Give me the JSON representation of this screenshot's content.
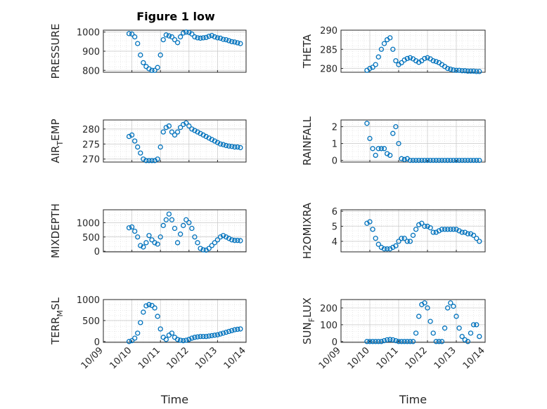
{
  "figure": {
    "title": "Figure 1 low",
    "marker_color": "#0072BD"
  },
  "chart_data": [
    {
      "type": "scatter",
      "panel": "pressure",
      "ylabel": "PRESSURE",
      "xlabel": "",
      "ylim": [
        790,
        1010
      ],
      "yticks": [
        800,
        900,
        1000
      ],
      "xlim": [
        0,
        5
      ],
      "xticks": [],
      "x": [
        0.9,
        1.0,
        1.1,
        1.2,
        1.3,
        1.4,
        1.5,
        1.6,
        1.7,
        1.8,
        1.9,
        2.0,
        2.1,
        2.2,
        2.3,
        2.4,
        2.5,
        2.6,
        2.7,
        2.8,
        2.9,
        3.0,
        3.1,
        3.2,
        3.3,
        3.4,
        3.5,
        3.6,
        3.7,
        3.8,
        3.9,
        4.0,
        4.1,
        4.2,
        4.3,
        4.4,
        4.5,
        4.6,
        4.7,
        4.8
      ],
      "y": [
        992,
        990,
        975,
        940,
        880,
        840,
        820,
        808,
        800,
        800,
        815,
        880,
        960,
        985,
        980,
        975,
        960,
        945,
        975,
        995,
        1000,
        998,
        990,
        975,
        970,
        968,
        970,
        972,
        978,
        982,
        975,
        970,
        968,
        962,
        960,
        955,
        950,
        948,
        944,
        940
      ]
    },
    {
      "type": "scatter",
      "panel": "theta",
      "ylabel": "THETA",
      "xlabel": "",
      "ylim": [
        279,
        290
      ],
      "yticks": [
        280,
        285,
        290
      ],
      "xlim": [
        0,
        5
      ],
      "xticks": [],
      "x": [
        0.9,
        1.0,
        1.1,
        1.2,
        1.3,
        1.4,
        1.5,
        1.6,
        1.7,
        1.8,
        1.9,
        2.0,
        2.1,
        2.2,
        2.3,
        2.4,
        2.5,
        2.6,
        2.7,
        2.8,
        2.9,
        3.0,
        3.1,
        3.2,
        3.3,
        3.4,
        3.5,
        3.6,
        3.7,
        3.8,
        3.9,
        4.0,
        4.1,
        4.2,
        4.3,
        4.4,
        4.5,
        4.6,
        4.7,
        4.8
      ],
      "y": [
        279.5,
        280,
        280.3,
        281,
        283,
        285,
        286.5,
        287.5,
        288,
        285,
        282,
        281,
        281.5,
        282.2,
        282.6,
        282.8,
        282.5,
        282,
        281.6,
        282,
        282.6,
        282.8,
        282.5,
        282,
        281.8,
        281.5,
        281,
        280.5,
        280,
        279.8,
        279.6,
        279.5,
        279.5,
        279.4,
        279.4,
        279.3,
        279.3,
        279.3,
        279.2,
        279.2
      ]
    },
    {
      "type": "scatter",
      "panel": "air-temp",
      "ylabel": "AIR_TEMP",
      "ylabel_main": "AIR",
      "ylabel_sub": "T",
      "ylabel_rest": "EMP",
      "xlabel": "",
      "ylim": [
        269,
        283
      ],
      "yticks": [
        270,
        275,
        280
      ],
      "xlim": [
        0,
        5
      ],
      "xticks": [],
      "x": [
        0.9,
        1.0,
        1.1,
        1.2,
        1.3,
        1.4,
        1.5,
        1.6,
        1.7,
        1.8,
        1.9,
        2.0,
        2.1,
        2.2,
        2.3,
        2.4,
        2.5,
        2.6,
        2.7,
        2.8,
        2.9,
        3.0,
        3.1,
        3.2,
        3.3,
        3.4,
        3.5,
        3.6,
        3.7,
        3.8,
        3.9,
        4.0,
        4.1,
        4.2,
        4.3,
        4.4,
        4.5,
        4.6,
        4.7,
        4.8
      ],
      "y": [
        277.5,
        278,
        276,
        274,
        272,
        270,
        269.5,
        269.5,
        269.5,
        269.5,
        270,
        274,
        279,
        280.5,
        281,
        279,
        278,
        279,
        280.5,
        281.5,
        282,
        281,
        280,
        279.5,
        279,
        278.5,
        278,
        277.5,
        277,
        276.5,
        276,
        275.5,
        275,
        274.8,
        274.5,
        274.3,
        274.2,
        274,
        274,
        273.8
      ]
    },
    {
      "type": "scatter",
      "panel": "rainfall",
      "ylabel": "RAINFALL",
      "xlabel": "",
      "ylim": [
        -0.1,
        2.4
      ],
      "yticks": [
        0,
        1,
        2
      ],
      "xlim": [
        0,
        5
      ],
      "xticks": [],
      "x": [
        0.9,
        1.0,
        1.1,
        1.2,
        1.3,
        1.4,
        1.5,
        1.6,
        1.7,
        1.8,
        1.9,
        2.0,
        2.1,
        2.2,
        2.3,
        2.4,
        2.5,
        2.6,
        2.7,
        2.8,
        2.9,
        3.0,
        3.1,
        3.2,
        3.3,
        3.4,
        3.5,
        3.6,
        3.7,
        3.8,
        3.9,
        4.0,
        4.1,
        4.2,
        4.3,
        4.4,
        4.5,
        4.6,
        4.7,
        4.8
      ],
      "y": [
        2.2,
        1.3,
        0.7,
        0.3,
        0.7,
        0.7,
        0.7,
        0.4,
        0.3,
        1.6,
        2.0,
        1.0,
        0.1,
        0.05,
        0.1,
        0,
        0,
        0,
        0,
        0,
        0,
        0,
        0,
        0,
        0,
        0,
        0,
        0,
        0,
        0,
        0,
        0,
        0,
        0,
        0,
        0,
        0,
        0,
        0,
        0
      ]
    },
    {
      "type": "scatter",
      "panel": "mixdepth",
      "ylabel": "MIXDEPTH",
      "xlabel": "",
      "ylim": [
        -20,
        1450
      ],
      "yticks": [
        0,
        500,
        1000
      ],
      "xlim": [
        0,
        5
      ],
      "xticks": [],
      "x": [
        0.9,
        1.0,
        1.1,
        1.2,
        1.3,
        1.4,
        1.5,
        1.6,
        1.7,
        1.8,
        1.9,
        2.0,
        2.1,
        2.2,
        2.3,
        2.4,
        2.5,
        2.6,
        2.7,
        2.8,
        2.9,
        3.0,
        3.1,
        3.2,
        3.3,
        3.4,
        3.5,
        3.6,
        3.7,
        3.8,
        3.9,
        4.0,
        4.1,
        4.2,
        4.3,
        4.4,
        4.5,
        4.6,
        4.7,
        4.8
      ],
      "y": [
        820,
        850,
        700,
        500,
        200,
        150,
        300,
        550,
        400,
        300,
        250,
        500,
        900,
        1100,
        1300,
        1100,
        800,
        300,
        600,
        900,
        1100,
        1000,
        800,
        500,
        300,
        100,
        50,
        40,
        100,
        200,
        300,
        400,
        500,
        550,
        500,
        450,
        400,
        380,
        380,
        370
      ]
    },
    {
      "type": "scatter",
      "panel": "h2omixra",
      "ylabel": "H2OMIXRA",
      "xlabel": "",
      "ylim": [
        3.3,
        6.1
      ],
      "yticks": [
        4,
        5,
        6
      ],
      "xlim": [
        0,
        5
      ],
      "xticks": [],
      "x": [
        0.9,
        1.0,
        1.1,
        1.2,
        1.3,
        1.4,
        1.5,
        1.6,
        1.7,
        1.8,
        1.9,
        2.0,
        2.1,
        2.2,
        2.3,
        2.4,
        2.5,
        2.6,
        2.7,
        2.8,
        2.9,
        3.0,
        3.1,
        3.2,
        3.3,
        3.4,
        3.5,
        3.6,
        3.7,
        3.8,
        3.9,
        4.0,
        4.1,
        4.2,
        4.3,
        4.4,
        4.5,
        4.6,
        4.7,
        4.8
      ],
      "y": [
        5.2,
        5.3,
        4.8,
        4.2,
        3.8,
        3.6,
        3.5,
        3.5,
        3.5,
        3.6,
        3.7,
        4.0,
        4.2,
        4.2,
        4.0,
        4.0,
        4.4,
        4.8,
        5.1,
        5.2,
        5.0,
        5.0,
        4.9,
        4.6,
        4.6,
        4.7,
        4.8,
        4.8,
        4.8,
        4.8,
        4.8,
        4.8,
        4.7,
        4.6,
        4.6,
        4.5,
        4.5,
        4.4,
        4.2,
        4.0
      ]
    },
    {
      "type": "scatter",
      "panel": "terrmsl",
      "ylabel": "TERR_MSL",
      "ylabel_main": "TERR",
      "ylabel_sub": "M",
      "ylabel_rest": "SL",
      "xlabel": "Time",
      "ylim": [
        -20,
        1000
      ],
      "yticks": [
        0,
        500,
        1000
      ],
      "xlim": [
        0,
        5
      ],
      "xticks": [
        "10/09",
        "10/10",
        "10/11",
        "10/12",
        "10/13",
        "10/14"
      ],
      "x": [
        0.9,
        1.0,
        1.1,
        1.2,
        1.3,
        1.4,
        1.5,
        1.6,
        1.7,
        1.8,
        1.9,
        2.0,
        2.1,
        2.2,
        2.3,
        2.4,
        2.5,
        2.6,
        2.7,
        2.8,
        2.9,
        3.0,
        3.1,
        3.2,
        3.3,
        3.4,
        3.5,
        3.6,
        3.7,
        3.8,
        3.9,
        4.0,
        4.1,
        4.2,
        4.3,
        4.4,
        4.5,
        4.6,
        4.7,
        4.8
      ],
      "y": [
        0,
        20,
        80,
        200,
        450,
        700,
        850,
        880,
        860,
        800,
        600,
        300,
        100,
        50,
        150,
        200,
        100,
        50,
        30,
        20,
        30,
        50,
        80,
        100,
        110,
        120,
        120,
        120,
        130,
        140,
        150,
        160,
        180,
        200,
        220,
        240,
        260,
        280,
        290,
        300
      ]
    },
    {
      "type": "scatter",
      "panel": "sunflux",
      "ylabel": "SUN_FLUX",
      "ylabel_main": "SUN",
      "ylabel_sub": "F",
      "ylabel_rest": "LUX",
      "xlabel": "Time",
      "ylim": [
        -5,
        250
      ],
      "yticks": [
        0,
        100,
        200
      ],
      "xlim": [
        0,
        5
      ],
      "xticks": [
        "10/09",
        "10/10",
        "10/11",
        "10/12",
        "10/13",
        "10/14"
      ],
      "x": [
        0.9,
        1.0,
        1.1,
        1.2,
        1.3,
        1.4,
        1.5,
        1.6,
        1.7,
        1.8,
        1.9,
        2.0,
        2.1,
        2.2,
        2.3,
        2.4,
        2.5,
        2.6,
        2.7,
        2.8,
        2.9,
        3.0,
        3.1,
        3.2,
        3.3,
        3.4,
        3.5,
        3.6,
        3.7,
        3.8,
        3.9,
        4.0,
        4.1,
        4.2,
        4.3,
        4.4,
        4.5,
        4.6,
        4.7,
        4.8
      ],
      "y": [
        0,
        0,
        0,
        0,
        0,
        0,
        5,
        10,
        12,
        10,
        5,
        0,
        0,
        0,
        0,
        0,
        0,
        50,
        150,
        220,
        230,
        200,
        120,
        50,
        0,
        0,
        0,
        80,
        200,
        230,
        210,
        150,
        80,
        30,
        10,
        0,
        50,
        100,
        100,
        30
      ]
    }
  ]
}
